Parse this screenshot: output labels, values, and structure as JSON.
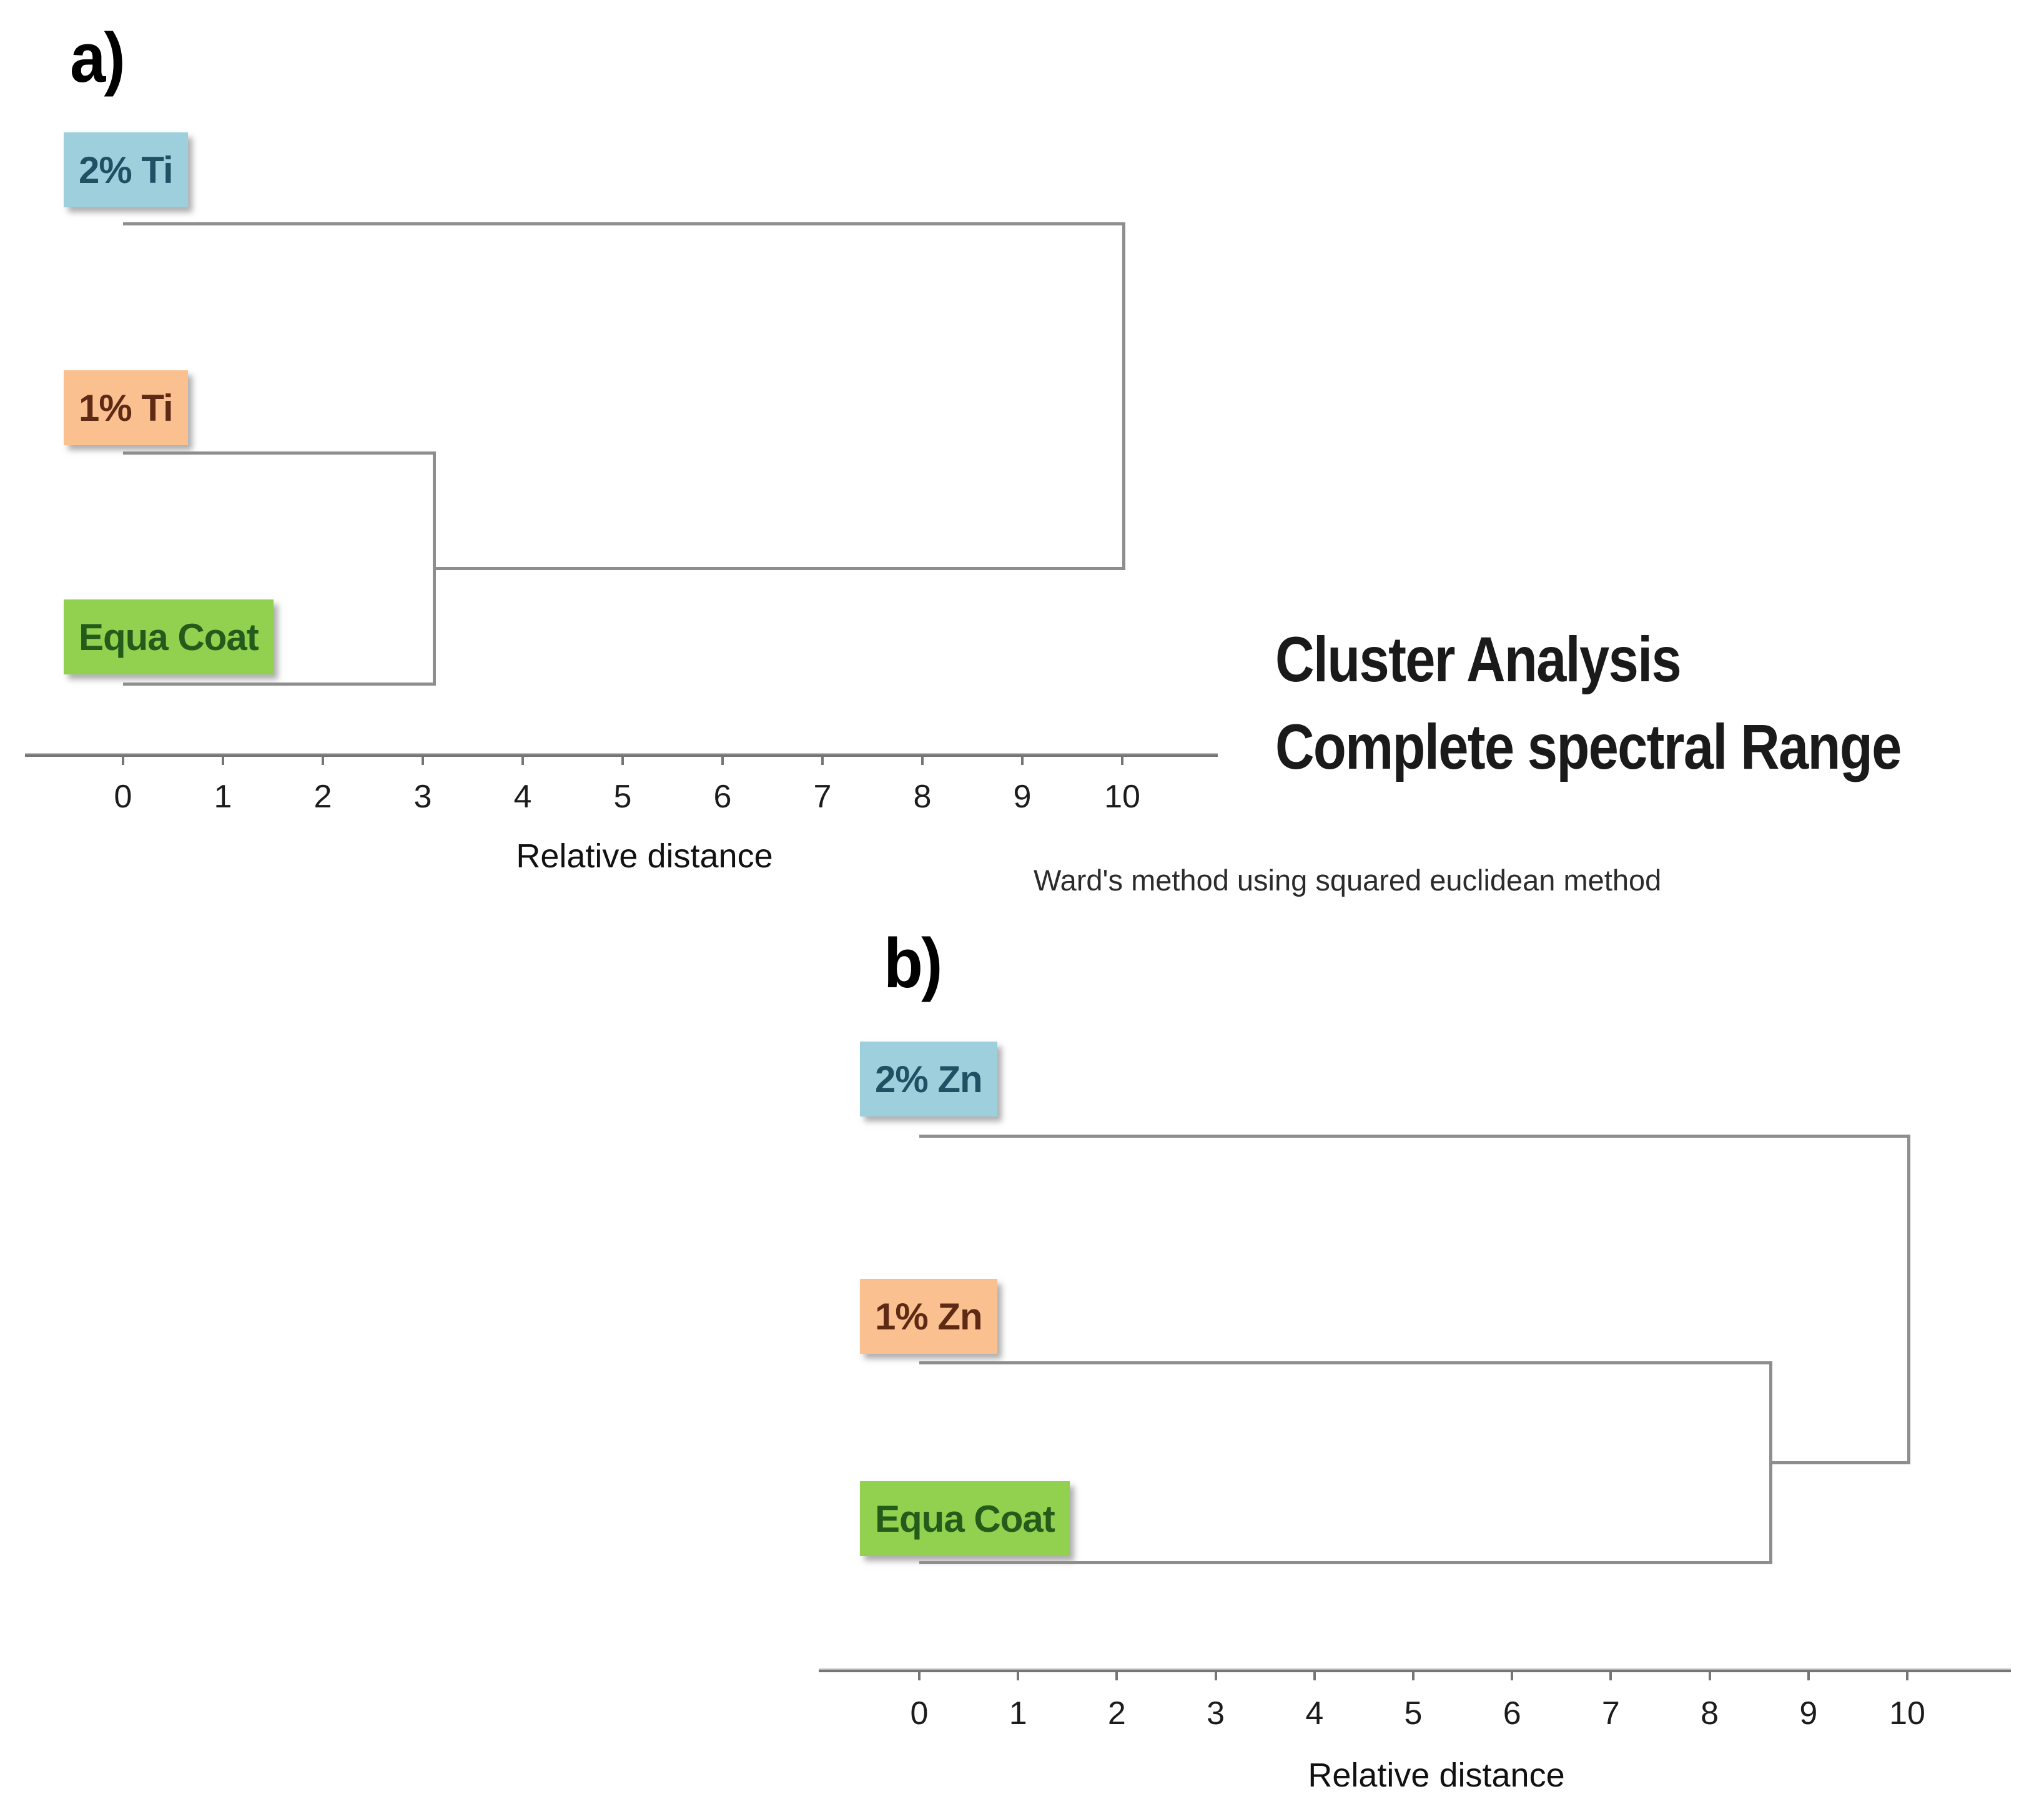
{
  "panel_a": {
    "label": "a)",
    "leaves": [
      {
        "label": "2% Ti",
        "bg": "#9dcfdc",
        "fg": "#1f5064"
      },
      {
        "label": "1% Ti",
        "bg": "#fac090",
        "fg": "#5e2a16"
      },
      {
        "label": "Equa Coat",
        "bg": "#92d050",
        "fg": "#245a1a"
      }
    ],
    "axis_label": "Relative distance",
    "ticks": [
      "0",
      "1",
      "2",
      "3",
      "4",
      "5",
      "6",
      "7",
      "8",
      "9",
      "10"
    ]
  },
  "panel_b": {
    "label": "b)",
    "leaves": [
      {
        "label": "2% Zn",
        "bg": "#9dcfdc",
        "fg": "#1f5064"
      },
      {
        "label": "1% Zn",
        "bg": "#fac090",
        "fg": "#5e2a16"
      },
      {
        "label": "Equa Coat",
        "bg": "#92d050",
        "fg": "#245a1a"
      }
    ],
    "axis_label": "Relative distance",
    "ticks": [
      "0",
      "1",
      "2",
      "3",
      "4",
      "5",
      "6",
      "7",
      "8",
      "9",
      "10"
    ]
  },
  "caption": {
    "title_line1": "Cluster Analysis",
    "title_line2": "Complete spectral Range",
    "method_note": "Ward's method using squared euclidean method"
  },
  "colors": {
    "dendrogram_line": "#8e8e8e",
    "axis_line": "#757575",
    "leaf_blue": "#9dcfdc",
    "leaf_orange": "#fac090",
    "leaf_green": "#92d050"
  },
  "chart_data": [
    {
      "type": "dendrogram",
      "panel": "a)",
      "leaves": [
        "2% Ti",
        "1% Ti",
        "Equa Coat"
      ],
      "merges": [
        {
          "members": [
            "1% Ti",
            "Equa Coat"
          ],
          "distance": 3.1
        },
        {
          "members": [
            "(1% Ti + Equa Coat)",
            "2% Ti"
          ],
          "distance": 10.0
        }
      ],
      "xlabel": "Relative distance",
      "xlim": [
        0,
        10
      ],
      "xticks": [
        0,
        1,
        2,
        3,
        4,
        5,
        6,
        7,
        8,
        9,
        10
      ],
      "orientation": "right",
      "grid": false
    },
    {
      "type": "dendrogram",
      "panel": "b)",
      "leaves": [
        "2% Zn",
        "1% Zn",
        "Equa Coat"
      ],
      "merges": [
        {
          "members": [
            "1% Zn",
            "Equa Coat"
          ],
          "distance": 8.6
        },
        {
          "members": [
            "(1% Zn + Equa Coat)",
            "2% Zn"
          ],
          "distance": 10.0
        }
      ],
      "xlabel": "Relative distance",
      "xlim": [
        0,
        10
      ],
      "xticks": [
        0,
        1,
        2,
        3,
        4,
        5,
        6,
        7,
        8,
        9,
        10
      ],
      "orientation": "right",
      "grid": false
    }
  ]
}
